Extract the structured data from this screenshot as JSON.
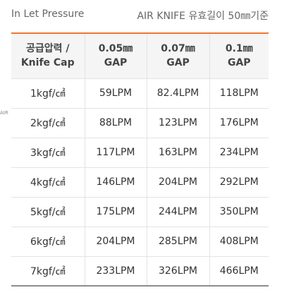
{
  "caption": {
    "left": "In Let Pressure",
    "right": "AIR KNIFE 유효길이 50㎜기준"
  },
  "side_label": "AIR",
  "table": {
    "headers": [
      {
        "line1": "공급압력 /",
        "line2": "Knife Cap"
      },
      {
        "line1": "0.05㎜",
        "line2": "GAP"
      },
      {
        "line1": "0.07㎜",
        "line2": "GAP"
      },
      {
        "line1": "0.1㎜",
        "line2": "GAP"
      }
    ],
    "rows": [
      [
        "1kgf/㎠",
        "59LPM",
        "82.4LPM",
        "118LPM"
      ],
      [
        "2kgf/㎠",
        "88LPM",
        "123LPM",
        "176LPM"
      ],
      [
        "3kgf/㎠",
        "117LPM",
        "163LPM",
        "234LPM"
      ],
      [
        "4kgf/㎠",
        "146LPM",
        "204LPM",
        "292LPM"
      ],
      [
        "5kgf/㎠",
        "175LPM",
        "244LPM",
        "350LPM"
      ],
      [
        "6kgf/㎠",
        "204LPM",
        "285LPM",
        "408LPM"
      ],
      [
        "7kgf/㎠",
        "233LPM",
        "326LPM",
        "466LPM"
      ]
    ]
  },
  "colors": {
    "header_top_border": "#f0762b",
    "header_background": "#f5f5f5",
    "bottom_border": "#8c8c8c"
  }
}
